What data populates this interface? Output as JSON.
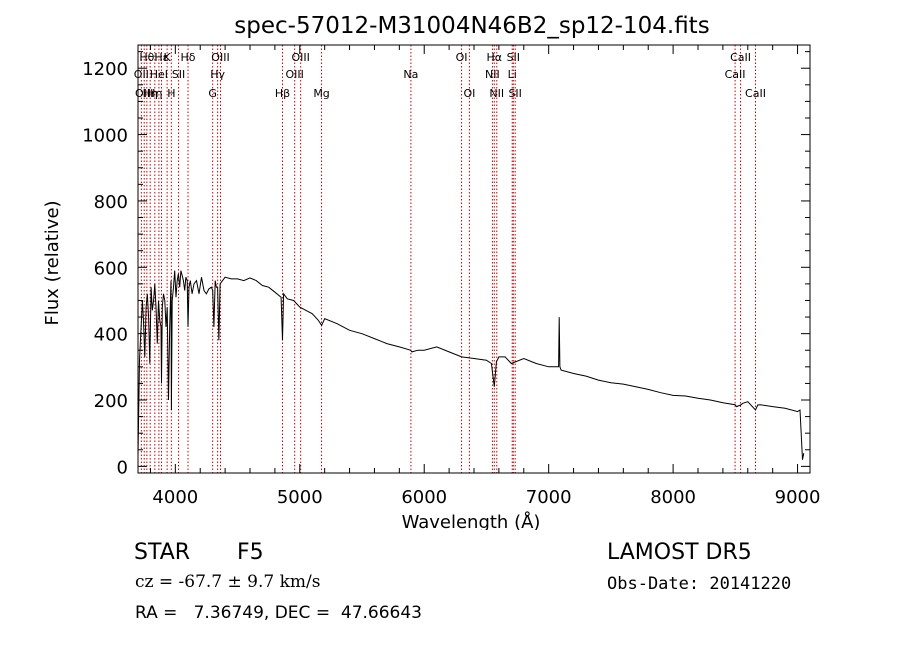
{
  "chart_data": {
    "type": "line",
    "title": "spec-57012-M31004N46B2_sp12-104.fits",
    "xlabel": "Wavelength (Å)",
    "ylabel": "Flux (relative)",
    "xlim": [
      3700,
      9100
    ],
    "ylim": [
      -20,
      1270
    ],
    "xticks": [
      4000,
      5000,
      6000,
      7000,
      8000,
      9000
    ],
    "xtick_labels": [
      "4000",
      "5000",
      "6000",
      "7000",
      "8000",
      "9000"
    ],
    "yticks": [
      0,
      200,
      400,
      600,
      800,
      1000,
      1200
    ],
    "ytick_labels": [
      "0",
      "200",
      "400",
      "600",
      "800",
      "1000",
      "1200"
    ],
    "grid": false,
    "series": [
      {
        "x": [
          3700,
          3712,
          3725,
          3735,
          3745,
          3755,
          3765,
          3775,
          3785,
          3795,
          3805,
          3815,
          3825,
          3835,
          3845,
          3855,
          3865,
          3875,
          3885,
          3889,
          3895,
          3905,
          3915,
          3925,
          3935,
          3945,
          3955,
          3965,
          3968,
          3975,
          3985,
          3995,
          4005,
          4015,
          4025,
          4035,
          4045,
          4055,
          4065,
          4075,
          4085,
          4095,
          4102,
          4110,
          4120,
          4135,
          4150,
          4170,
          4190,
          4210,
          4230,
          4250,
          4270,
          4290,
          4300,
          4310,
          4320,
          4330,
          4340,
          4350,
          4360,
          4380,
          4400,
          4450,
          4500,
          4550,
          4600,
          4650,
          4700,
          4750,
          4800,
          4850,
          4861,
          4870,
          4900,
          4950,
          5000,
          5050,
          5100,
          5150,
          5175,
          5200,
          5300,
          5400,
          5500,
          5600,
          5700,
          5800,
          5890,
          5900,
          5950,
          6000,
          6100,
          6200,
          6300,
          6400,
          6500,
          6540,
          6563,
          6580,
          6600,
          6650,
          6700,
          6800,
          6900,
          7000,
          7080,
          7085,
          7090,
          7100,
          7200,
          7300,
          7400,
          7500,
          7600,
          7700,
          7800,
          7900,
          8000,
          8100,
          8200,
          8300,
          8400,
          8498,
          8510,
          8542,
          8560,
          8600,
          8662,
          8680,
          8700,
          8800,
          8900,
          9000,
          9020,
          9040,
          9050
        ],
        "values": [
          30,
          320,
          420,
          500,
          430,
          330,
          480,
          520,
          450,
          310,
          540,
          470,
          500,
          550,
          480,
          370,
          500,
          440,
          420,
          250,
          480,
          520,
          500,
          420,
          480,
          200,
          420,
          560,
          170,
          500,
          540,
          590,
          510,
          560,
          580,
          540,
          590,
          575,
          560,
          530,
          570,
          560,
          420,
          540,
          560,
          520,
          550,
          560,
          520,
          570,
          530,
          520,
          535,
          540,
          530,
          420,
          560,
          540,
          540,
          380,
          550,
          560,
          570,
          565,
          565,
          560,
          568,
          560,
          545,
          540,
          525,
          510,
          380,
          520,
          505,
          500,
          480,
          470,
          460,
          440,
          425,
          445,
          430,
          410,
          400,
          385,
          370,
          360,
          350,
          345,
          350,
          350,
          360,
          345,
          330,
          325,
          320,
          310,
          240,
          315,
          330,
          330,
          310,
          325,
          310,
          300,
          300,
          450,
          300,
          290,
          280,
          272,
          260,
          252,
          248,
          240,
          232,
          222,
          214,
          212,
          205,
          200,
          192,
          186,
          180,
          185,
          190,
          195,
          170,
          185,
          186,
          180,
          175,
          165,
          170,
          20,
          40
        ]
      }
    ],
    "line_markers": [
      {
        "wave": 3727,
        "label": "OII",
        "row": 1
      },
      {
        "wave": 3750,
        "label": "OIII",
        "row": 2
      },
      {
        "wave": 3771,
        "label": "Hθ",
        "row": 0
      },
      {
        "wave": 3798,
        "label": "Hη",
        "row": 2
      },
      {
        "wave": 3835,
        "label": "Hη",
        "row": 2
      },
      {
        "wave": 3868,
        "label": "HeI",
        "row": 1
      },
      {
        "wave": 3889,
        "label": "Hε",
        "row": 0
      },
      {
        "wave": 3934,
        "label": "K",
        "row": 0
      },
      {
        "wave": 3968,
        "label": "H",
        "row": 2
      },
      {
        "wave": 4026,
        "label": "SII",
        "row": 1
      },
      {
        "wave": 4102,
        "label": "Hδ",
        "row": 0
      },
      {
        "wave": 4300,
        "label": "G",
        "row": 2
      },
      {
        "wave": 4340,
        "label": "Hγ",
        "row": 1
      },
      {
        "wave": 4363,
        "label": "OIII",
        "row": 0
      },
      {
        "wave": 4861,
        "label": "Hβ",
        "row": 2
      },
      {
        "wave": 4959,
        "label": "OIII",
        "row": 1
      },
      {
        "wave": 5007,
        "label": "OIII",
        "row": 0
      },
      {
        "wave": 5175,
        "label": "Mg",
        "row": 2
      },
      {
        "wave": 5893,
        "label": "Na",
        "row": 1
      },
      {
        "wave": 6300,
        "label": "OI",
        "row": 0
      },
      {
        "wave": 6363,
        "label": "OI",
        "row": 2
      },
      {
        "wave": 6548,
        "label": "NII",
        "row": 1
      },
      {
        "wave": 6563,
        "label": "Hα",
        "row": 0
      },
      {
        "wave": 6583,
        "label": "NII",
        "row": 2
      },
      {
        "wave": 6707,
        "label": "Li",
        "row": 1
      },
      {
        "wave": 6716,
        "label": "SII",
        "row": 0
      },
      {
        "wave": 6731,
        "label": "SII",
        "row": 2
      },
      {
        "wave": 8498,
        "label": "CaII",
        "row": 1
      },
      {
        "wave": 8542,
        "label": "CaII",
        "row": 0
      },
      {
        "wave": 8662,
        "label": "CaII",
        "row": 2
      }
    ]
  },
  "info": {
    "class_label": "STAR",
    "subclass": "F5",
    "survey": "LAMOST DR5",
    "redshift_text": "cz = -67.7 ± 9.7 km/s",
    "obs_date_text": "Obs-Date: 20141220",
    "coords_text": "RA =   7.36749, DEC =  47.66643"
  },
  "colors": {
    "spectrum": "#000000",
    "marker_line": "#cc0000",
    "text": "#000000",
    "background": "#ffffff"
  }
}
